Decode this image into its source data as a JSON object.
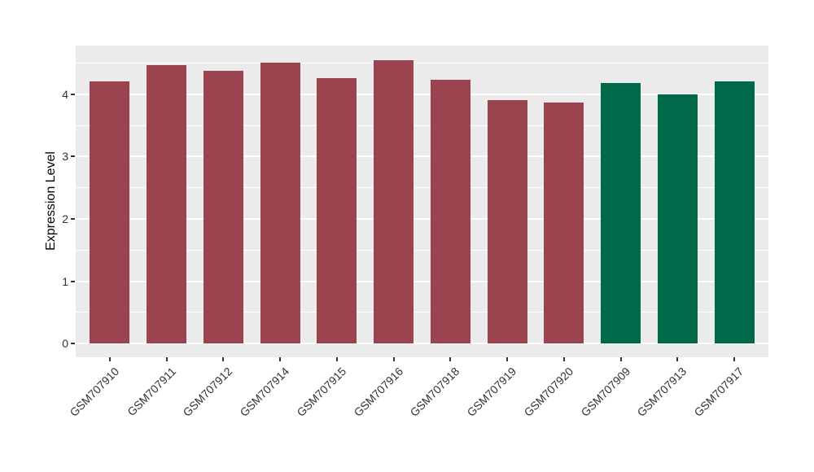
{
  "chart_data": {
    "type": "bar",
    "categories": [
      "GSM707910",
      "GSM707911",
      "GSM707912",
      "GSM707914",
      "GSM707915",
      "GSM707916",
      "GSM707918",
      "GSM707919",
      "GSM707920",
      "GSM707909",
      "GSM707913",
      "GSM707917"
    ],
    "values": [
      4.21,
      4.47,
      4.37,
      4.51,
      4.26,
      4.55,
      4.23,
      3.9,
      3.86,
      4.18,
      4.0,
      4.2
    ],
    "bar_groups": [
      "group1",
      "group1",
      "group1",
      "group1",
      "group1",
      "group1",
      "group1",
      "group1",
      "group1",
      "group2",
      "group2",
      "group2"
    ],
    "group_colors": {
      "group1": "#9A4450",
      "group2": "#00694A"
    },
    "ylabel": "Expression Level",
    "xlabel": "",
    "title": "",
    "yticks": [
      0,
      1,
      2,
      3,
      4
    ],
    "ylim": [
      -0.22,
      4.78
    ],
    "x_tick_rotation_deg": 45,
    "legend": "none",
    "panel_bg": "#EBEBEB",
    "gridline_color": "#FFFFFF",
    "axis_text_color": "#333333",
    "tick_mark_color": "#333333"
  }
}
